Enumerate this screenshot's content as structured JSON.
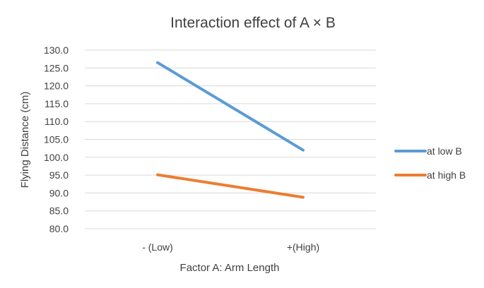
{
  "chart_data": {
    "type": "line",
    "title": "Interaction effect of A × B",
    "xlabel": "Factor A: Arm Length",
    "ylabel": "Flying Distance (cm)",
    "categories": [
      "- (Low)",
      "+(High)"
    ],
    "ylim": [
      80,
      130
    ],
    "ytick_step": 5,
    "ytick_labels": [
      "80.0",
      "85.0",
      "90.0",
      "95.0",
      "100.0",
      "105.0",
      "110.0",
      "115.0",
      "120.0",
      "125.0",
      "130.0"
    ],
    "grid": true,
    "legend_position": "right",
    "series": [
      {
        "name": "at low B",
        "values": [
          126.5,
          102.0
        ],
        "color": "#5b9bd5"
      },
      {
        "name": "at high B",
        "values": [
          95.1,
          88.8
        ],
        "color": "#ed7d31"
      }
    ]
  }
}
